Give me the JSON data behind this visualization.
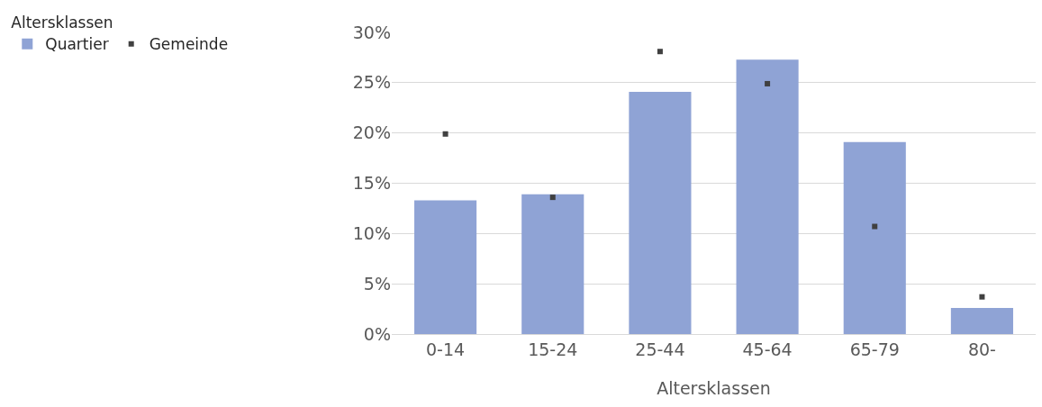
{
  "chart_data": {
    "type": "bar",
    "xlabel": "Altersklassen",
    "legend_title": "Altersklassen",
    "categories": [
      "0-14",
      "15-24",
      "25-44",
      "45-64",
      "65-79",
      "80-"
    ],
    "series": [
      {
        "name": "Quartier",
        "color": "#8fa3d5",
        "values": [
          13.3,
          13.9,
          24.1,
          27.3,
          19.1,
          2.6
        ]
      },
      {
        "name": "Gemeinde",
        "type": "scatter",
        "color": "#404040",
        "values": [
          19.9,
          13.6,
          28.1,
          24.9,
          10.7,
          3.7
        ]
      }
    ],
    "ylim": [
      0,
      30
    ],
    "yticks": [
      {
        "value": 0,
        "label": "0%"
      },
      {
        "value": 5,
        "label": "5%"
      },
      {
        "value": 10,
        "label": "10%"
      },
      {
        "value": 15,
        "label": "15%"
      },
      {
        "value": 20,
        "label": "20%"
      },
      {
        "value": 25,
        "label": "25%"
      },
      {
        "value": 30,
        "label": "30%"
      }
    ],
    "grid": "y",
    "legend": "top left"
  }
}
